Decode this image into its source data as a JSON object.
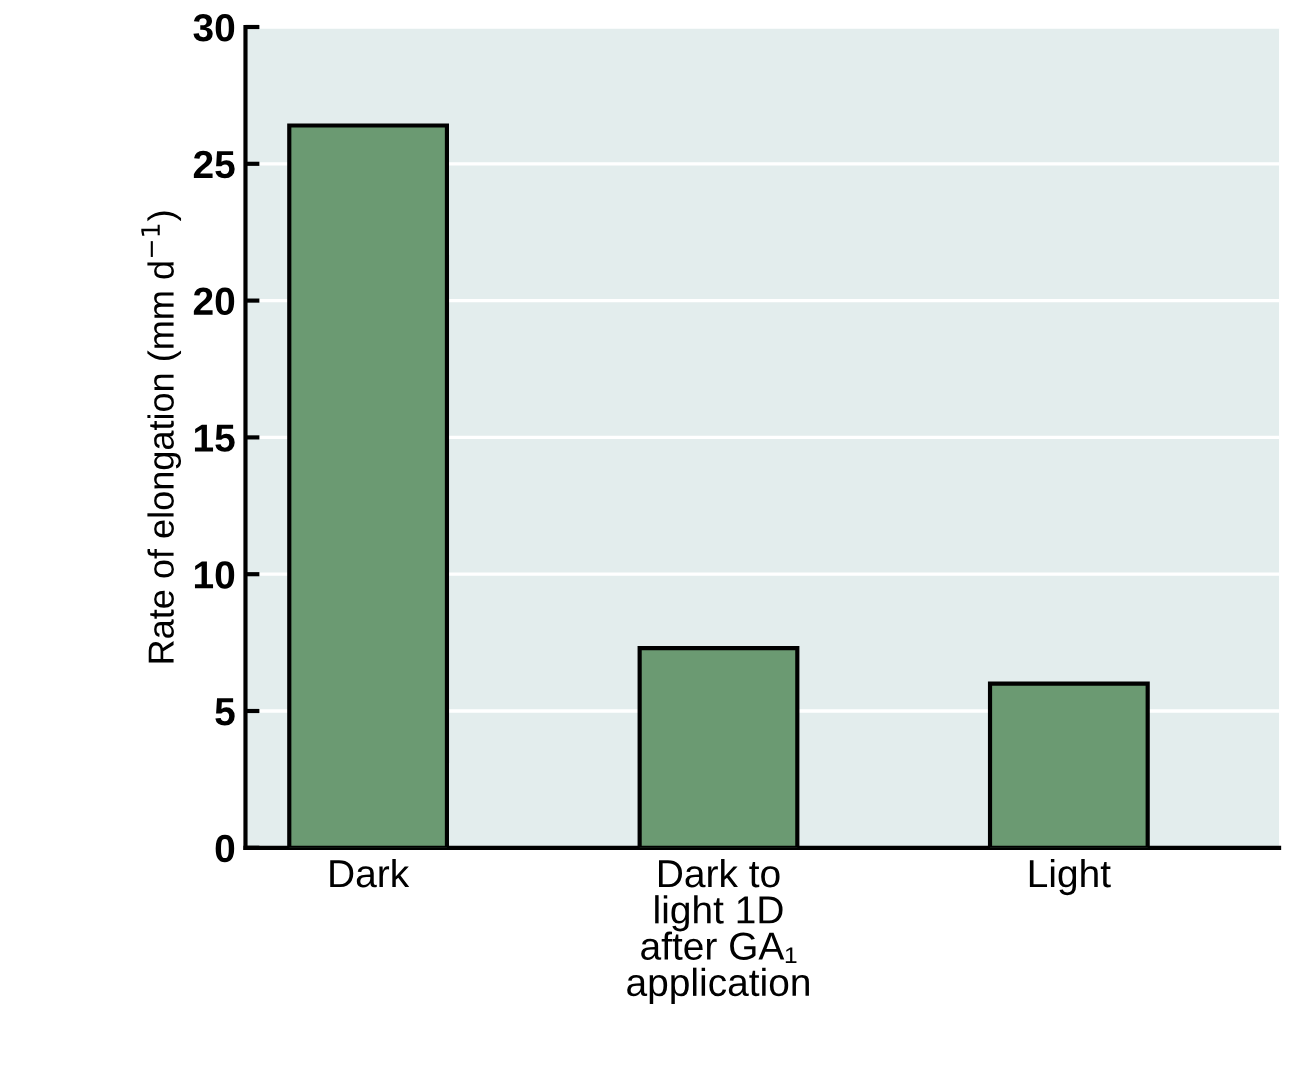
{
  "chart_data": {
    "type": "bar",
    "ylabel": "Rate of elongation (mm d$^{−1}$)",
    "categories": [
      "Dark",
      "Dark to\nlight 1D\nafter GA₁\napplication",
      "Light"
    ],
    "values": [
      26.4,
      7.3,
      6.0
    ],
    "color": "#6b9a72",
    "ylim": [
      0,
      30
    ],
    "yticks": [
      0,
      5,
      10,
      15,
      20,
      25,
      30
    ],
    "grid": "y"
  }
}
